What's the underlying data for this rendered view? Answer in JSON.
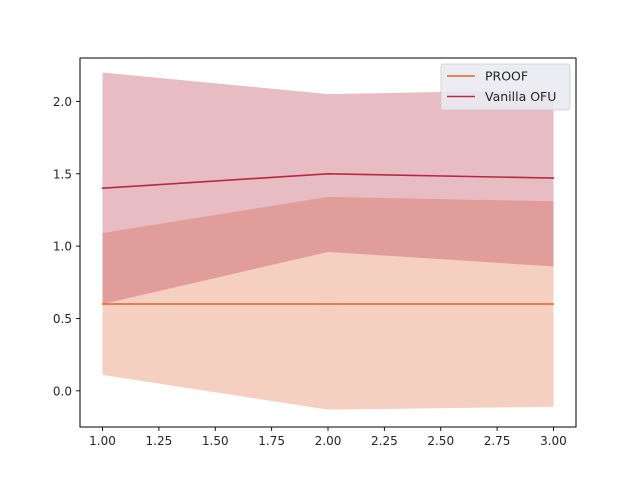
{
  "chart_data": {
    "type": "line",
    "title": "",
    "xlabel": "",
    "ylabel": "",
    "xlim": [
      0.9,
      3.1
    ],
    "ylim": [
      -0.25,
      2.3
    ],
    "xticks": [
      1.0,
      1.25,
      1.5,
      1.75,
      2.0,
      2.25,
      2.5,
      2.75,
      3.0
    ],
    "xtick_labels": [
      "1.00",
      "1.25",
      "1.50",
      "1.75",
      "2.00",
      "2.25",
      "2.50",
      "2.75",
      "3.00"
    ],
    "yticks": [
      0.0,
      0.5,
      1.0,
      1.5,
      2.0
    ],
    "ytick_labels": [
      "0.0",
      "0.5",
      "1.0",
      "1.5",
      "2.0"
    ],
    "grid": false,
    "legend_position": "top-right",
    "x": [
      1,
      2,
      3
    ],
    "series": [
      {
        "name": "PROOF",
        "values": [
          0.6,
          0.6,
          0.6
        ],
        "lower": [
          0.11,
          -0.13,
          -0.11
        ],
        "upper": [
          1.09,
          1.34,
          1.31
        ],
        "color": "#e8622a",
        "fill_color": "#f5cfbf"
      },
      {
        "name": "Vanilla OFU",
        "values": [
          1.4,
          1.5,
          1.47
        ],
        "lower": [
          0.6,
          0.96,
          0.86
        ],
        "upper": [
          2.2,
          2.05,
          2.08
        ],
        "color": "#b52a40",
        "fill_color": "#e8bcc3"
      }
    ],
    "overlap_color": "#e09d99",
    "axis_color": "#000000"
  }
}
